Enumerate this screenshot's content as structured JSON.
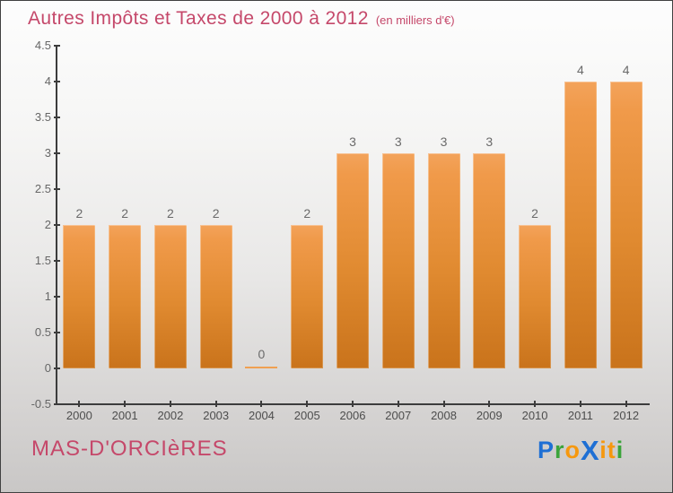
{
  "title": "Autres Impôts et Taxes de 2000 à 2012",
  "subtitle": "(en milliers d'€)",
  "footer": {
    "commune": "MAS-D'ORCIèRES",
    "logo": {
      "text": "Proxiti",
      "letters": [
        {
          "ch": "P",
          "color": "#1e6fd4"
        },
        {
          "ch": "r",
          "color": "#3ba43b"
        },
        {
          "ch": "o",
          "color": "#f6980e"
        },
        {
          "ch": "X",
          "color": "#1e6fd4",
          "bold": true
        },
        {
          "ch": "i",
          "color": "#f6980e"
        },
        {
          "ch": "t",
          "color": "#f6980e"
        },
        {
          "ch": "i",
          "color": "#3ba43b"
        }
      ]
    }
  },
  "colors": {
    "title_pink": "#c5486a",
    "bar_top": "#f3a35b",
    "bar_bottom": "#c9731b",
    "axis": "#3c3c3c",
    "tick_label": "#666666",
    "value_label": "#6a6a6a",
    "background_top": "#fdfdfd",
    "background_bottom": "#c9c7c6"
  },
  "chart_data": {
    "type": "bar",
    "categories": [
      "2000",
      "2001",
      "2002",
      "2003",
      "2004",
      "2005",
      "2006",
      "2007",
      "2008",
      "2009",
      "2010",
      "2011",
      "2012"
    ],
    "values": [
      2,
      2,
      2,
      2,
      0,
      2,
      3,
      3,
      3,
      3,
      2,
      4,
      4
    ],
    "title": "Autres Impôts et Taxes de 2000 à 2012",
    "subtitle": "(en milliers d'€)",
    "xlabel": "",
    "ylabel": "",
    "ylim": [
      -0.5,
      4.5
    ],
    "ytick_step": 0.5,
    "grid": false,
    "legend": false,
    "value_labels_shown": true,
    "bar_color_gradient": [
      "#f3a35b",
      "#c9731b"
    ]
  }
}
